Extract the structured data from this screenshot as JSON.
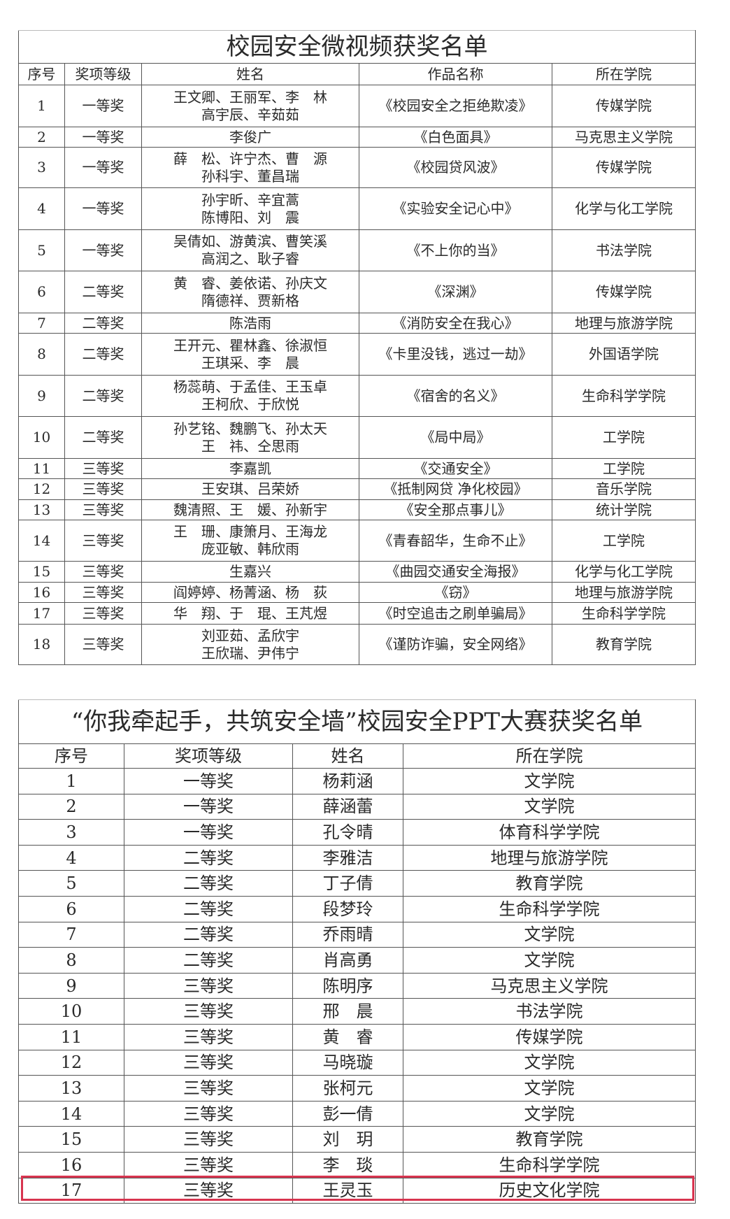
{
  "video": {
    "title": "校园安全微视频获奖名单",
    "headers": [
      "序号",
      "奖项等级",
      "姓名",
      "作品名称",
      "所在学院"
    ],
    "rows": [
      {
        "no": "1",
        "award": "一等奖",
        "names": [
          "王文卿、王丽军、李　林",
          "高宇辰、辛茹茹"
        ],
        "work": "《校园安全之拒绝欺凌》",
        "college": "传媒学院"
      },
      {
        "no": "2",
        "award": "一等奖",
        "names": [
          "李俊广"
        ],
        "work": "《白色面具》",
        "college": "马克思主义学院"
      },
      {
        "no": "3",
        "award": "一等奖",
        "names": [
          "薛　松、许宁杰、曹　源",
          "孙科宇、董昌瑞"
        ],
        "work": "《校园贷风波》",
        "college": "传媒学院"
      },
      {
        "no": "4",
        "award": "一等奖",
        "names": [
          "孙宇昕、辛宜蒿",
          "陈博阳、刘　震"
        ],
        "work": "《实验安全记心中》",
        "college": "化学与化工学院"
      },
      {
        "no": "5",
        "award": "一等奖",
        "names": [
          "吴倩如、游黄滨、曹笑溪",
          "高润之、耿子睿"
        ],
        "work": "《不上你的当》",
        "college": "书法学院"
      },
      {
        "no": "6",
        "award": "二等奖",
        "names": [
          "黄　睿、姜依诺、孙庆文",
          "隋德祥、贾新格"
        ],
        "work": "《深渊》",
        "college": "传媒学院"
      },
      {
        "no": "7",
        "award": "二等奖",
        "names": [
          "陈浩雨"
        ],
        "work": "《消防安全在我心》",
        "college": "地理与旅游学院"
      },
      {
        "no": "8",
        "award": "二等奖",
        "names": [
          "王开元、瞿林鑫、徐淑恒",
          "王琪采、李　晨"
        ],
        "work": "《卡里没钱，逃过一劫》",
        "college": "外国语学院"
      },
      {
        "no": "9",
        "award": "二等奖",
        "names": [
          "杨蕊萌、于孟佳、王玉卓",
          "王柯欣、于欣悦"
        ],
        "work": "《宿舍的名义》",
        "college": "生命科学学院"
      },
      {
        "no": "10",
        "award": "二等奖",
        "names": [
          "孙艺铭、魏鹏飞、孙太天",
          "王　祎、仝思雨"
        ],
        "work": "《局中局》",
        "college": "工学院"
      },
      {
        "no": "11",
        "award": "三等奖",
        "names": [
          "李嘉凯"
        ],
        "work": "《交通安全》",
        "college": "工学院"
      },
      {
        "no": "12",
        "award": "三等奖",
        "names": [
          "王安琪、吕荣娇"
        ],
        "work": "《抵制网贷 净化校园》",
        "college": "音乐学院"
      },
      {
        "no": "13",
        "award": "三等奖",
        "names": [
          "魏清照、王　媛、孙新宇"
        ],
        "work": "《安全那点事儿》",
        "college": "统计学院"
      },
      {
        "no": "14",
        "award": "三等奖",
        "names": [
          "王　珊、康箫月、王海龙",
          "庞亚敏、韩欣雨"
        ],
        "work": "《青春韶华，生命不止》",
        "college": "工学院"
      },
      {
        "no": "15",
        "award": "三等奖",
        "names": [
          "生嘉兴"
        ],
        "work": "《曲园交通安全海报》",
        "college": "化学与化工学院"
      },
      {
        "no": "16",
        "award": "三等奖",
        "names": [
          "阎婷婷、杨菁涵、杨　荻"
        ],
        "work": "《窃》",
        "college": "地理与旅游学院"
      },
      {
        "no": "17",
        "award": "三等奖",
        "names": [
          "华　翔、于　琨、王芃煜"
        ],
        "work": "《时空追击之刷单骗局》",
        "college": "生命科学学院"
      },
      {
        "no": "18",
        "award": "三等奖",
        "names": [
          "刘亚茹、孟欣宇",
          "王欣瑞、尹伟宁"
        ],
        "work": "《谨防诈骗，安全网络》",
        "college": "教育学院"
      }
    ]
  },
  "ppt": {
    "title": "“你我牵起手，共筑安全墙”校园安全PPT大赛获奖名单",
    "headers": [
      "序号",
      "奖项等级",
      "姓名",
      "所在学院"
    ],
    "rows": [
      {
        "no": "1",
        "award": "一等奖",
        "name": "杨莉涵",
        "college": "文学院"
      },
      {
        "no": "2",
        "award": "一等奖",
        "name": "薛涵蕾",
        "college": "文学院"
      },
      {
        "no": "3",
        "award": "一等奖",
        "name": "孔令晴",
        "college": "体育科学学院"
      },
      {
        "no": "4",
        "award": "二等奖",
        "name": "李雅洁",
        "college": "地理与旅游学院"
      },
      {
        "no": "5",
        "award": "二等奖",
        "name": "丁子倩",
        "college": "教育学院"
      },
      {
        "no": "6",
        "award": "二等奖",
        "name": "段梦玲",
        "college": "生命科学学院"
      },
      {
        "no": "7",
        "award": "二等奖",
        "name": "乔雨晴",
        "college": "文学院"
      },
      {
        "no": "8",
        "award": "二等奖",
        "name": "肖高勇",
        "college": "文学院"
      },
      {
        "no": "9",
        "award": "三等奖",
        "name": "陈明序",
        "college": "马克思主义学院"
      },
      {
        "no": "10",
        "award": "三等奖",
        "name": "邢　晨",
        "college": "书法学院"
      },
      {
        "no": "11",
        "award": "三等奖",
        "name": "黄　睿",
        "college": "传媒学院"
      },
      {
        "no": "12",
        "award": "三等奖",
        "name": "马晓璇",
        "college": "文学院"
      },
      {
        "no": "13",
        "award": "三等奖",
        "name": "张柯元",
        "college": "文学院"
      },
      {
        "no": "14",
        "award": "三等奖",
        "name": "彭一倩",
        "college": "文学院"
      },
      {
        "no": "15",
        "award": "三等奖",
        "name": "刘　玥",
        "college": "教育学院"
      },
      {
        "no": "16",
        "award": "三等奖",
        "name": "李　琰",
        "college": "生命科学学院"
      },
      {
        "no": "17",
        "award": "三等奖",
        "name": "王灵玉",
        "college": "历史文化学院"
      }
    ],
    "highlighted_row": "17",
    "highlight_color": "#d8344f"
  }
}
